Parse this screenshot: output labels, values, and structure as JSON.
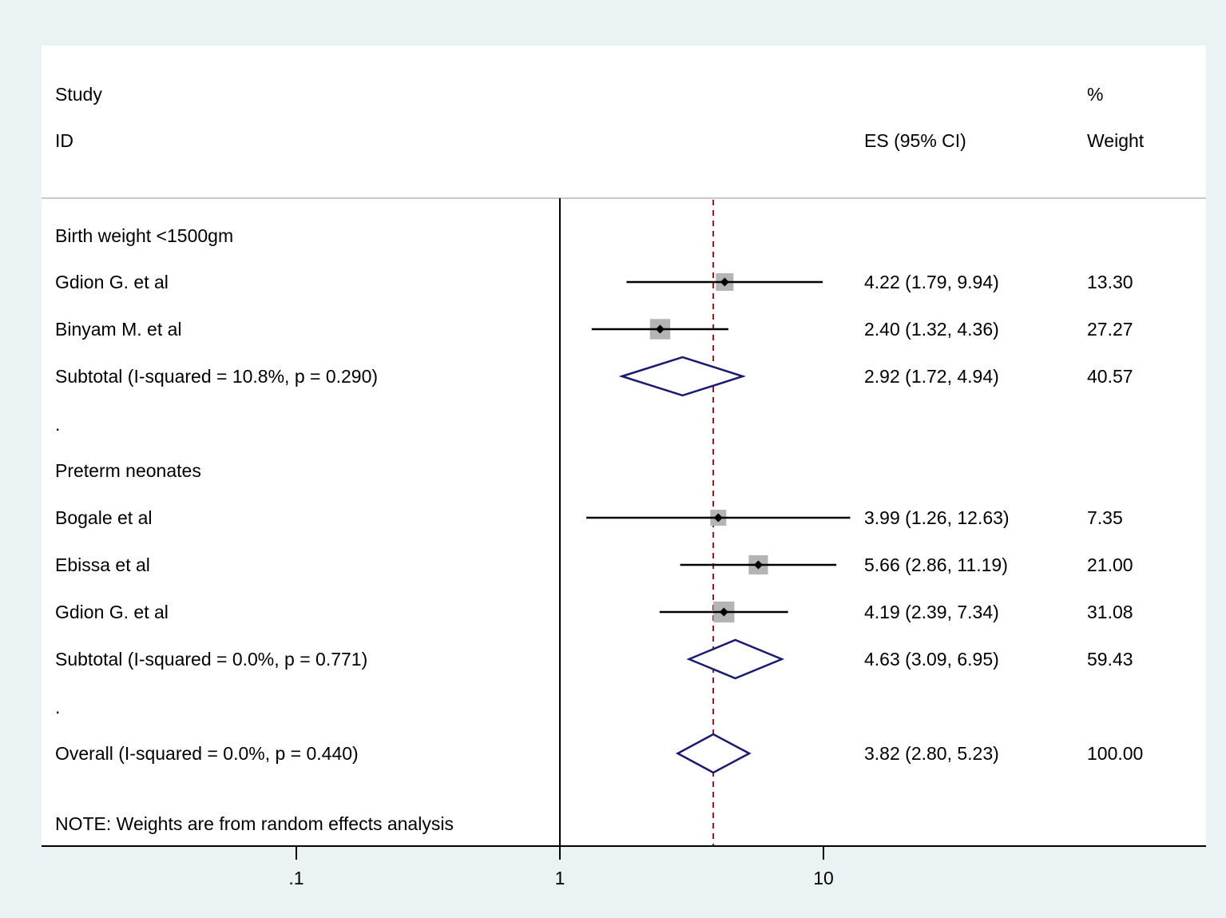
{
  "chart_data": {
    "type": "forest",
    "x_scale": "log",
    "x_ticks": [
      {
        "value": 0.1,
        "label": ".1"
      },
      {
        "value": 1,
        "label": "1"
      },
      {
        "value": 10,
        "label": "10"
      }
    ],
    "null_line": 1,
    "overall_line": 3.82,
    "headers": {
      "study_line1": "Study",
      "study_line2": "ID",
      "es": "ES (95% CI)",
      "weight_line1": "%",
      "weight_line2": "Weight"
    },
    "rows": [
      {
        "kind": "group",
        "label": "Birth weight <1500gm"
      },
      {
        "kind": "study",
        "label": "Gdion G. et al",
        "es": 4.22,
        "lo": 1.79,
        "hi": 9.94,
        "es_text": "4.22 (1.79, 9.94)",
        "weight": 13.3,
        "weight_text": "13.30"
      },
      {
        "kind": "study",
        "label": "Binyam M. et al",
        "es": 2.4,
        "lo": 1.32,
        "hi": 4.36,
        "es_text": "2.40 (1.32, 4.36)",
        "weight": 27.27,
        "weight_text": "27.27"
      },
      {
        "kind": "subtotal",
        "label": "Subtotal  (I-squared = 10.8%, p = 0.290)",
        "es": 2.92,
        "lo": 1.72,
        "hi": 4.94,
        "es_text": "2.92 (1.72, 4.94)",
        "weight_text": "40.57"
      },
      {
        "kind": "spacer",
        "label": "."
      },
      {
        "kind": "group",
        "label": "Preterm neonates"
      },
      {
        "kind": "study",
        "label": "Bogale et al",
        "es": 3.99,
        "lo": 1.26,
        "hi": 12.63,
        "es_text": "3.99 (1.26, 12.63)",
        "weight": 7.35,
        "weight_text": "7.35"
      },
      {
        "kind": "study",
        "label": "Ebissa et al",
        "es": 5.66,
        "lo": 2.86,
        "hi": 11.19,
        "es_text": "5.66 (2.86, 11.19)",
        "weight": 21.0,
        "weight_text": "21.00"
      },
      {
        "kind": "study",
        "label": "Gdion G. et al",
        "es": 4.19,
        "lo": 2.39,
        "hi": 7.34,
        "es_text": "4.19 (2.39, 7.34)",
        "weight": 31.08,
        "weight_text": "31.08"
      },
      {
        "kind": "subtotal",
        "label": "Subtotal  (I-squared = 0.0%, p = 0.771)",
        "es": 4.63,
        "lo": 3.09,
        "hi": 6.95,
        "es_text": "4.63 (3.09, 6.95)",
        "weight_text": "59.43"
      },
      {
        "kind": "spacer",
        "label": "."
      },
      {
        "kind": "overall",
        "label": "Overall  (I-squared = 0.0%, p = 0.440)",
        "es": 3.82,
        "lo": 2.8,
        "hi": 5.23,
        "es_text": "3.82 (2.80, 5.23)",
        "weight_text": "100.00"
      }
    ],
    "note": "NOTE: Weights are from random effects analysis",
    "colors": {
      "background": "#eaf2f3",
      "plot_area": "#ffffff",
      "diamond": "#1a1a6e",
      "overall_line": "#8b1c1c",
      "weight_box": "#b4b4b4"
    }
  }
}
